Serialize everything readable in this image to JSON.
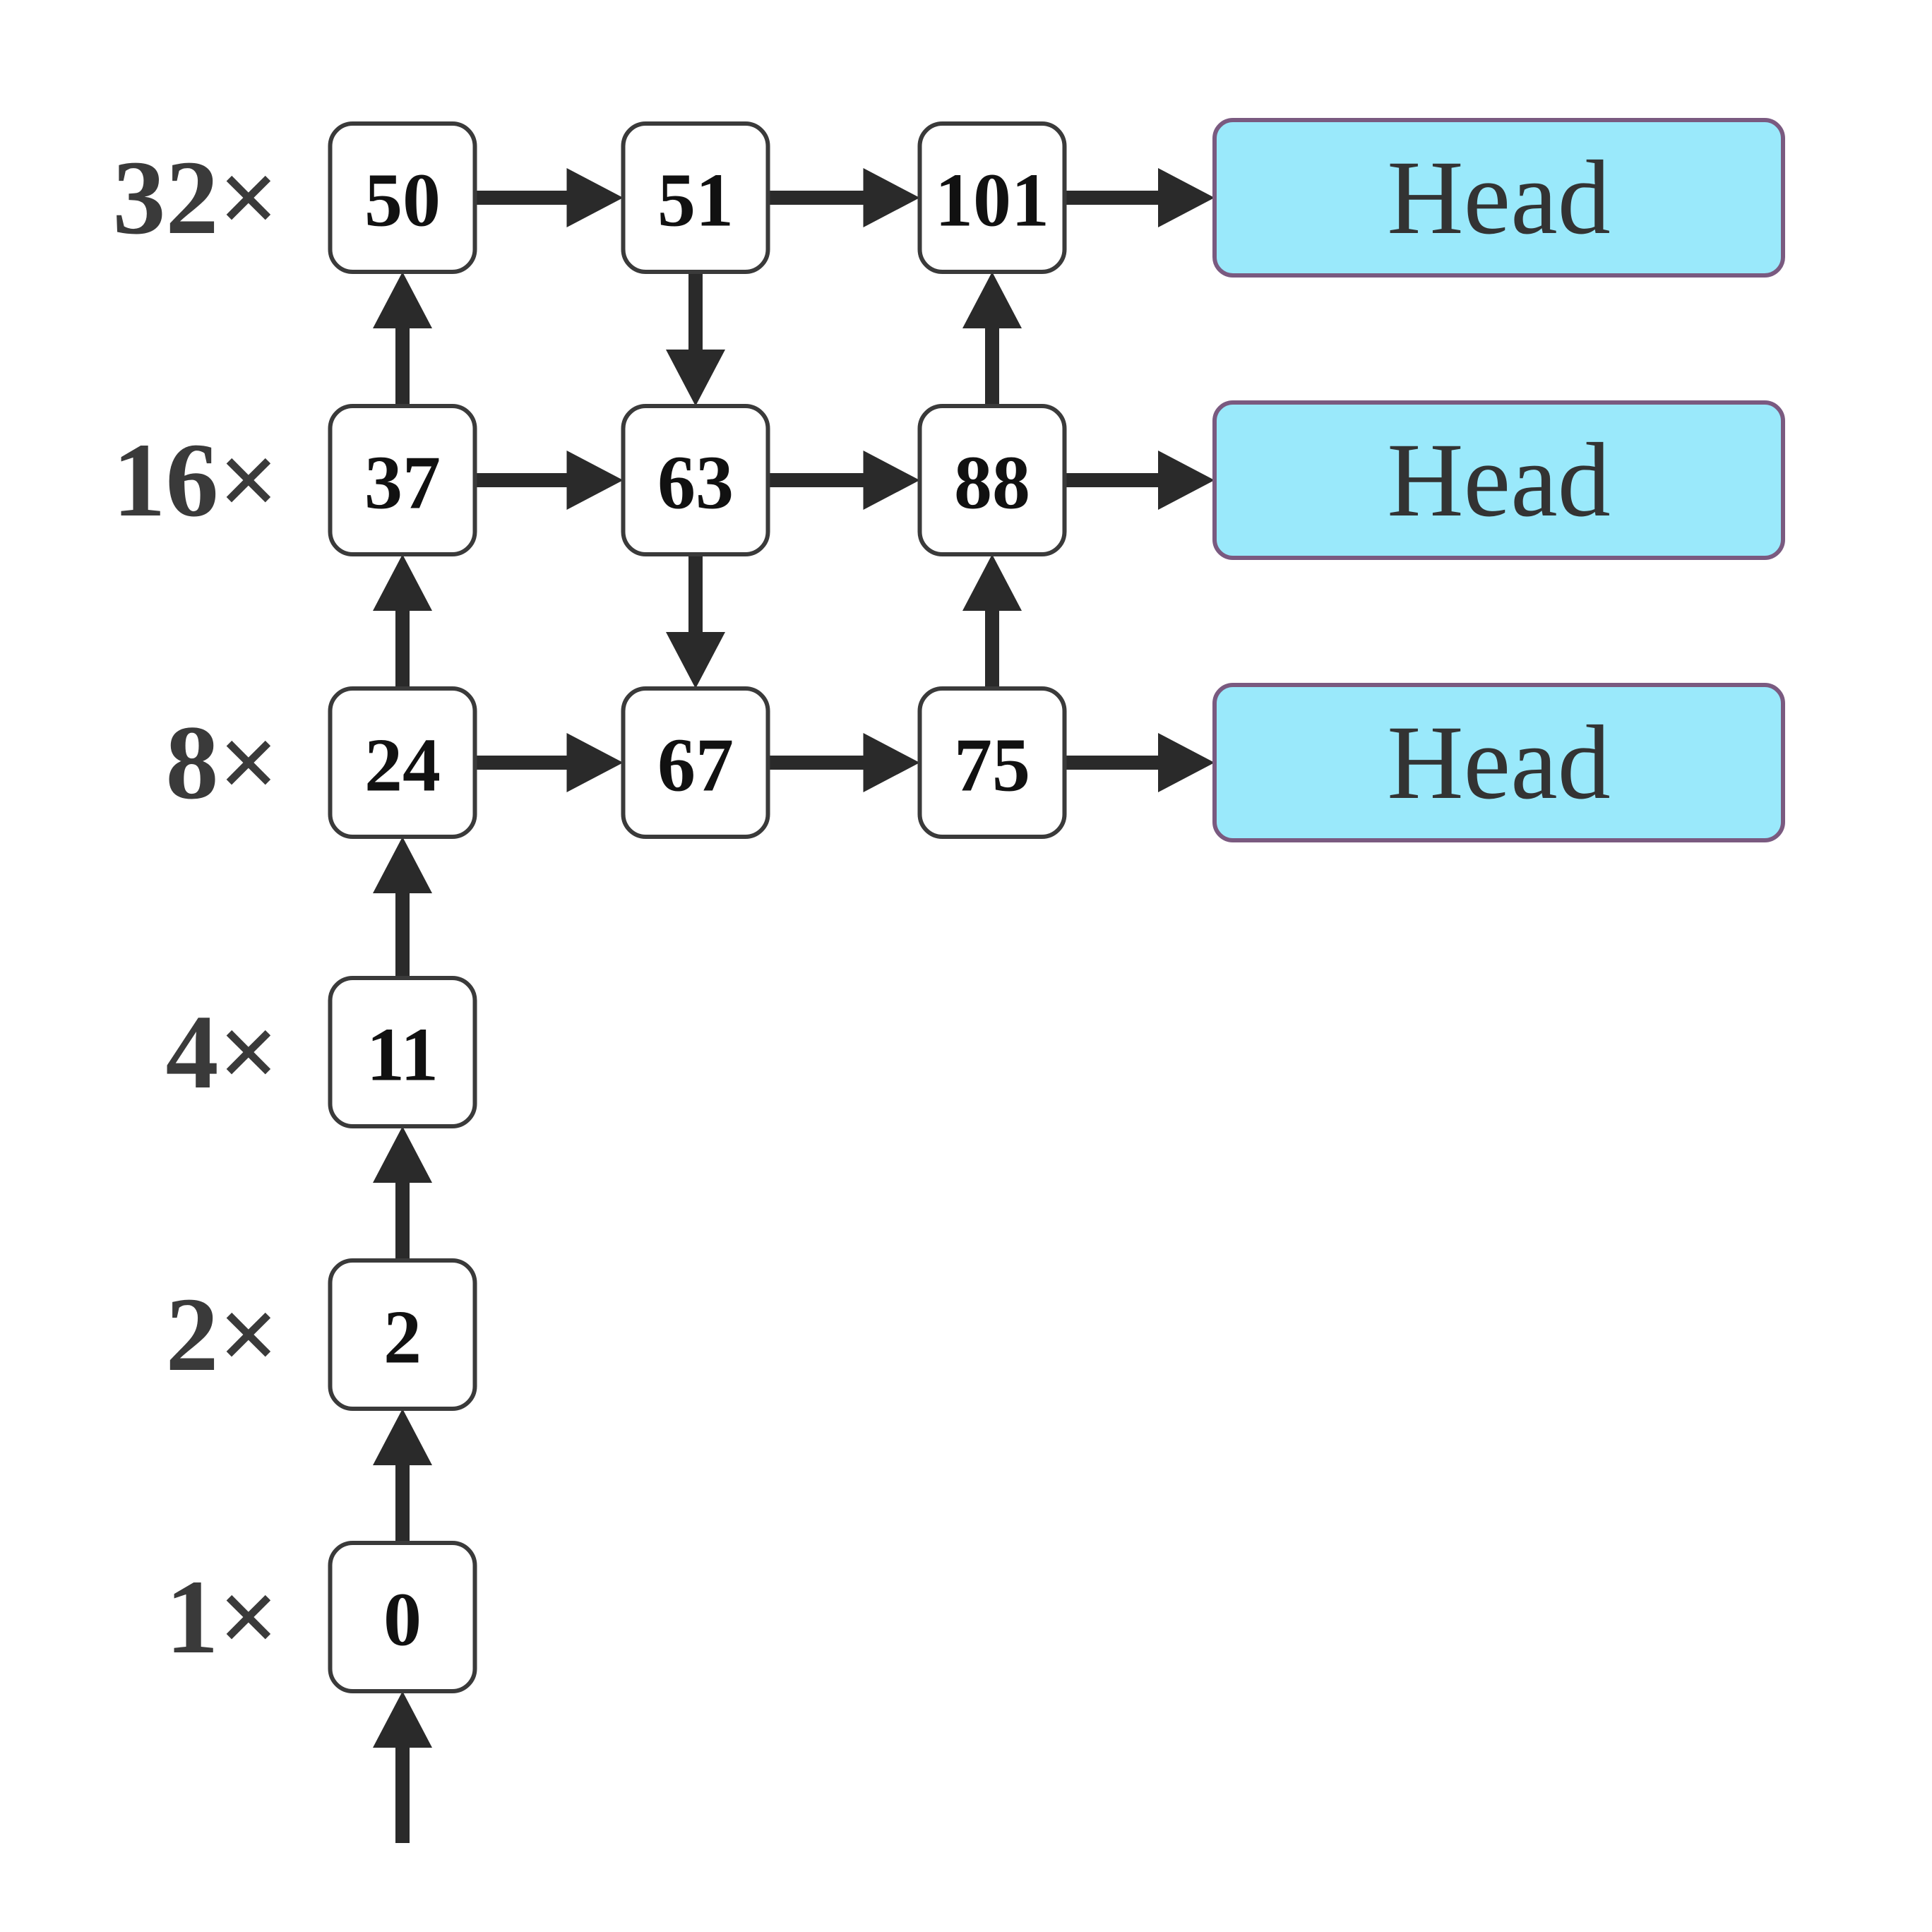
{
  "scales": [
    {
      "id": "s32",
      "label": "32×"
    },
    {
      "id": "s16",
      "label": "16×"
    },
    {
      "id": "s8",
      "label": "8×"
    },
    {
      "id": "s4",
      "label": "4×"
    },
    {
      "id": "s2",
      "label": "2×"
    },
    {
      "id": "s1",
      "label": "1×"
    }
  ],
  "nodes": [
    {
      "id": "n0",
      "label": "0",
      "scale": "s1"
    },
    {
      "id": "n2",
      "label": "2",
      "scale": "s2"
    },
    {
      "id": "n11",
      "label": "11",
      "scale": "s4"
    },
    {
      "id": "n24",
      "label": "24",
      "scale": "s8"
    },
    {
      "id": "n37",
      "label": "37",
      "scale": "s16"
    },
    {
      "id": "n50",
      "label": "50",
      "scale": "s32"
    },
    {
      "id": "n51",
      "label": "51",
      "scale": "s32"
    },
    {
      "id": "n63",
      "label": "63",
      "scale": "s16"
    },
    {
      "id": "n67",
      "label": "67",
      "scale": "s8"
    },
    {
      "id": "n75",
      "label": "75",
      "scale": "s8"
    },
    {
      "id": "n88",
      "label": "88",
      "scale": "s16"
    },
    {
      "id": "n101",
      "label": "101",
      "scale": "s32"
    }
  ],
  "heads": [
    {
      "id": "h32",
      "label": "Head",
      "scale": "s32"
    },
    {
      "id": "h16",
      "label": "Head",
      "scale": "s16"
    },
    {
      "id": "h8",
      "label": "Head",
      "scale": "s8"
    }
  ],
  "edges": [
    {
      "from": "input",
      "to": "n0"
    },
    {
      "from": "n0",
      "to": "n2"
    },
    {
      "from": "n2",
      "to": "n11"
    },
    {
      "from": "n11",
      "to": "n24"
    },
    {
      "from": "n24",
      "to": "n37"
    },
    {
      "from": "n37",
      "to": "n50"
    },
    {
      "from": "n50",
      "to": "n51"
    },
    {
      "from": "n37",
      "to": "n63"
    },
    {
      "from": "n24",
      "to": "n67"
    },
    {
      "from": "n51",
      "to": "n63"
    },
    {
      "from": "n63",
      "to": "n67"
    },
    {
      "from": "n51",
      "to": "n101"
    },
    {
      "from": "n63",
      "to": "n88"
    },
    {
      "from": "n67",
      "to": "n75"
    },
    {
      "from": "n75",
      "to": "n88"
    },
    {
      "from": "n88",
      "to": "n101"
    },
    {
      "from": "n101",
      "to": "h32"
    },
    {
      "from": "n88",
      "to": "h16"
    },
    {
      "from": "n75",
      "to": "h8"
    }
  ],
  "colors": {
    "head_fill": "#9ae9fb",
    "head_border": "#7a5a80",
    "arrow": "#2a2a2a",
    "node_border": "#3a3a3a"
  }
}
